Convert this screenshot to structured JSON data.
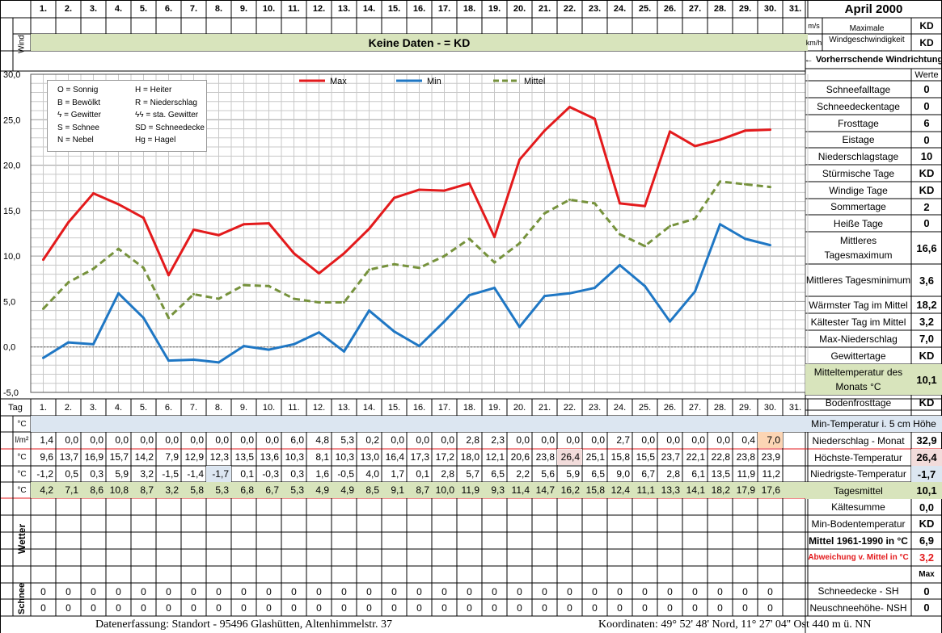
{
  "header": {
    "month": "April 2000",
    "wind_label": "Wind",
    "unit_ms": "m/s",
    "unit_kmh": "km/h",
    "max_wind_label": "Maximale Windgeschwindigkeit",
    "max_ms": "KD",
    "max_kmh": "KD",
    "no_data": "Keine Daten -  = KD",
    "wind_dir": "← Vorherrschende Windrichtung",
    "werte": "Werte"
  },
  "days": [
    "1.",
    "2.",
    "3.",
    "4.",
    "5.",
    "6.",
    "7.",
    "8.",
    "9.",
    "10.",
    "11.",
    "12.",
    "13.",
    "14.",
    "15.",
    "16.",
    "17.",
    "18.",
    "19.",
    "20.",
    "21.",
    "22.",
    "23.",
    "24.",
    "25.",
    "26.",
    "27.",
    "28.",
    "29.",
    "30.",
    "31."
  ],
  "legend": {
    "items": [
      {
        "a": "O = Sonnig",
        "b": "H = Heiter"
      },
      {
        "a": "B = Bewölkt",
        "b": "R = Niederschlag"
      },
      {
        "a": "ϟ = Gewitter",
        "b": "ϟϟ = sta. Gewitter"
      },
      {
        "a": "S = Schnee",
        "b": "SD = Schneedecke"
      },
      {
        "a": "N = Nebel",
        "b": "Hg = Hagel"
      }
    ]
  },
  "chart_data": {
    "type": "line",
    "x": [
      1,
      2,
      3,
      4,
      5,
      6,
      7,
      8,
      9,
      10,
      11,
      12,
      13,
      14,
      15,
      16,
      17,
      18,
      19,
      20,
      21,
      22,
      23,
      24,
      25,
      26,
      27,
      28,
      29,
      30
    ],
    "ylim": [
      -5,
      30
    ],
    "yticks": [
      "30,0",
      "25,0",
      "20,0",
      "15,0",
      "10,0",
      "5,0",
      "0,0",
      "-5,0"
    ],
    "series": [
      {
        "name": "Max",
        "color": "#e31a1c",
        "dash": false,
        "values": [
          9.6,
          13.7,
          16.9,
          15.7,
          14.2,
          7.9,
          12.9,
          12.3,
          13.5,
          13.6,
          10.3,
          8.1,
          10.3,
          13.0,
          16.4,
          17.3,
          17.2,
          18.0,
          12.1,
          20.6,
          23.8,
          26.4,
          25.1,
          15.8,
          15.5,
          23.7,
          22.1,
          22.8,
          23.8,
          23.9
        ]
      },
      {
        "name": "Min",
        "color": "#1f77c4",
        "dash": false,
        "values": [
          -1.2,
          0.5,
          0.3,
          5.9,
          3.2,
          -1.5,
          -1.4,
          -1.7,
          0.1,
          -0.3,
          0.3,
          1.6,
          -0.5,
          4.0,
          1.7,
          0.1,
          2.8,
          5.7,
          6.5,
          2.2,
          5.6,
          5.9,
          6.5,
          9.0,
          6.7,
          2.8,
          6.1,
          13.5,
          11.9,
          11.2
        ]
      },
      {
        "name": "Mittel",
        "color": "#76923c",
        "dash": true,
        "values": [
          4.2,
          7.1,
          8.6,
          10.8,
          8.7,
          3.2,
          5.8,
          5.3,
          6.8,
          6.7,
          5.3,
          4.9,
          4.9,
          8.5,
          9.1,
          8.7,
          10.0,
          11.9,
          9.3,
          11.4,
          14.7,
          16.2,
          15.8,
          12.4,
          11.1,
          13.3,
          14.1,
          18.2,
          17.9,
          17.6
        ]
      }
    ]
  },
  "table": {
    "tag_label": "Tag",
    "rows": [
      {
        "unit": "°C",
        "values": [
          "",
          "",
          "",
          "",
          "",
          "",
          "",
          "",
          "",
          "",
          "",
          "",
          "",
          "",
          "",
          "",
          "",
          "",
          "",
          "",
          "",
          "",
          "",
          "",
          "",
          "",
          "",
          "",
          "",
          "",
          ""
        ]
      },
      {
        "unit": "l/m²",
        "values": [
          "1,4",
          "0,0",
          "0,0",
          "0,0",
          "0,0",
          "0,0",
          "0,0",
          "0,0",
          "0,0",
          "0,0",
          "6,0",
          "4,8",
          "5,3",
          "0,2",
          "0,0",
          "0,0",
          "0,0",
          "2,8",
          "2,3",
          "0,0",
          "0,0",
          "0,0",
          "0,0",
          "2,7",
          "0,0",
          "0,0",
          "0,0",
          "0,0",
          "0,4",
          "7,0",
          ""
        ]
      },
      {
        "unit": "°C",
        "values": [
          "9,6",
          "13,7",
          "16,9",
          "15,7",
          "14,2",
          "7,9",
          "12,9",
          "12,3",
          "13,5",
          "13,6",
          "10,3",
          "8,1",
          "10,3",
          "13,0",
          "16,4",
          "17,3",
          "17,2",
          "18,0",
          "12,1",
          "20,6",
          "23,8",
          "26,4",
          "25,1",
          "15,8",
          "15,5",
          "23,7",
          "22,1",
          "22,8",
          "23,8",
          "23,9",
          ""
        ]
      },
      {
        "unit": "°C",
        "values": [
          "-1,2",
          "0,5",
          "0,3",
          "5,9",
          "3,2",
          "-1,5",
          "-1,4",
          "-1,7",
          "0,1",
          "-0,3",
          "0,3",
          "1,6",
          "-0,5",
          "4,0",
          "1,7",
          "0,1",
          "2,8",
          "5,7",
          "6,5",
          "2,2",
          "5,6",
          "5,9",
          "6,5",
          "9,0",
          "6,7",
          "2,8",
          "6,1",
          "13,5",
          "11,9",
          "11,2",
          ""
        ]
      },
      {
        "unit": "°C",
        "values": [
          "4,2",
          "7,1",
          "8,6",
          "10,8",
          "8,7",
          "3,2",
          "5,8",
          "5,3",
          "6,8",
          "6,7",
          "5,3",
          "4,9",
          "4,9",
          "8,5",
          "9,1",
          "8,7",
          "10,0",
          "11,9",
          "9,3",
          "11,4",
          "14,7",
          "16,2",
          "15,8",
          "12,4",
          "11,1",
          "13,3",
          "14,1",
          "18,2",
          "17,9",
          "17,6",
          ""
        ]
      }
    ],
    "wetter_label": "Wetter",
    "schnee_label": "Schnee",
    "snow_rows": [
      [
        "0",
        "0",
        "0",
        "0",
        "0",
        "0",
        "0",
        "0",
        "0",
        "0",
        "0",
        "0",
        "0",
        "0",
        "0",
        "0",
        "0",
        "0",
        "0",
        "0",
        "0",
        "0",
        "0",
        "0",
        "0",
        "0",
        "0",
        "0",
        "0",
        "0",
        ""
      ],
      [
        "0",
        "0",
        "0",
        "0",
        "0",
        "0",
        "0",
        "0",
        "0",
        "0",
        "0",
        "0",
        "0",
        "0",
        "0",
        "0",
        "0",
        "0",
        "0",
        "0",
        "0",
        "0",
        "0",
        "0",
        "0",
        "0",
        "0",
        "0",
        "0",
        "0",
        ""
      ]
    ]
  },
  "stats_top": [
    {
      "label": "Schneefalltage",
      "value": "0"
    },
    {
      "label": "Schneedeckentage",
      "value": "0"
    },
    {
      "label": "Frosttage",
      "value": "6"
    },
    {
      "label": "Eistage",
      "value": "0"
    },
    {
      "label": "Niederschlagstage",
      "value": "10"
    },
    {
      "label": "Stürmische Tage",
      "value": "KD"
    },
    {
      "label": "Windige Tage",
      "value": "KD"
    },
    {
      "label": "Sommertage",
      "value": "2"
    },
    {
      "label": "Heiße Tage",
      "value": "0"
    },
    {
      "label": "Mittleres Tagesmaximum",
      "value": "16,6"
    },
    {
      "label": "Mittleres Tagesminimum",
      "value": "3,6"
    },
    {
      "label": "Wärmster Tag im Mittel",
      "value": "18,2"
    },
    {
      "label": "Kältester Tag im Mittel",
      "value": "3,2"
    },
    {
      "label": "Max-Niederschlag",
      "value": "7,0"
    },
    {
      "label": "Gewittertage",
      "value": "KD"
    },
    {
      "label": "Mitteltemperatur des Monats °C",
      "value": "10,1"
    },
    {
      "label": "Bodenfrosttage",
      "value": "KD"
    }
  ],
  "stats_bottom": [
    {
      "label": "Min-Temperatur i. 5 cm Höhe",
      "value": ""
    },
    {
      "label": "Niederschlag - Monat",
      "value": "32,9"
    },
    {
      "label": "Höchste-Temperatur",
      "value": "26,4"
    },
    {
      "label": "Niedrigste-Temperatur",
      "value": "-1,7"
    },
    {
      "label": "Tagesmittel",
      "value": "10,1"
    },
    {
      "label": "Kältesumme",
      "value": "0,0"
    },
    {
      "label": "Min-Bodentemperatur",
      "value": "KD"
    },
    {
      "label": "Mittel 1961-1990 in °C",
      "value": "6,9"
    },
    {
      "label": "Abweichung v. Mittel in °C",
      "value": "3,2"
    },
    {
      "label": "",
      "value": "Max"
    },
    {
      "label": "Schneedecke -   SH",
      "value": "0"
    },
    {
      "label": "Neuschneehöhe- NSH",
      "value": "0"
    }
  ],
  "footer": {
    "left": "Datenerfassung:  Standort -  95496  Glashütten, Altenhimmelstr. 37",
    "right": "Koordinaten:  49° 52' 48' Nord,  11° 27' 04'' Ost   440 m ü. NN"
  }
}
